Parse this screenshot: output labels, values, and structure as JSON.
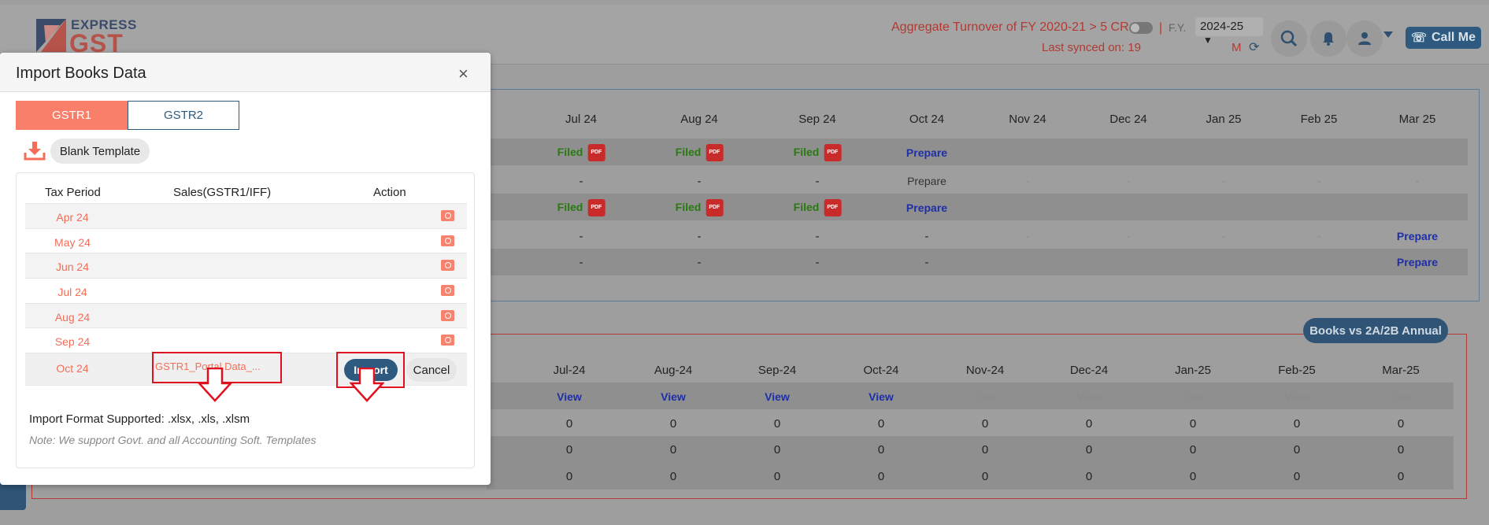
{
  "header": {
    "logo_top": "EXPRESS",
    "logo_bottom": "GST",
    "turnover_text": "Aggregate Turnover of FY 2020-21 > 5 CR ?",
    "fy_label": "F.Y.",
    "fy_value": "2024-25",
    "synced_text": "Last synced on: 19",
    "synced_suffix": "M",
    "call_me": "Call Me"
  },
  "panel1": {
    "months": [
      "Jul 24",
      "Aug 24",
      "Sep 24",
      "Oct 24",
      "Nov 24",
      "Dec 24",
      "Jan 25",
      "Feb 25",
      "Mar 25"
    ],
    "filed_label": "Filed",
    "prepare_label": "Prepare",
    "dash": "-",
    "pdf_label": "PDF"
  },
  "panel2": {
    "badge": "Books vs 2A/2B Annual",
    "months": [
      "Jul-24",
      "Aug-24",
      "Sep-24",
      "Oct-24",
      "Nov-24",
      "Dec-24",
      "Jan-25",
      "Feb-25",
      "Mar-25"
    ],
    "view_label": "View",
    "zero": "0"
  },
  "modal": {
    "title": "Import Books Data",
    "close": "×",
    "tabs": [
      {
        "label": "GSTR1",
        "active": true
      },
      {
        "label": "GSTR2",
        "active": false
      }
    ],
    "blank_template": "Blank Template",
    "table": {
      "headers": [
        "Tax Period",
        "Sales(GSTR1/IFF)",
        "Action"
      ],
      "rows": [
        {
          "period": "Apr 24"
        },
        {
          "period": "May 24"
        },
        {
          "period": "Jun 24"
        },
        {
          "period": "Jul 24"
        },
        {
          "period": "Aug 24"
        },
        {
          "period": "Sep 24"
        },
        {
          "period": "Oct 24",
          "file": "GSTR1_Portal Data_..."
        }
      ]
    },
    "import_label": "Import",
    "cancel_label": "Cancel",
    "format_text": "Import Format Supported: .xlsx, .xls, .xlsm",
    "note_text": "Note: We support Govt. and all Accounting Soft. Templates"
  }
}
